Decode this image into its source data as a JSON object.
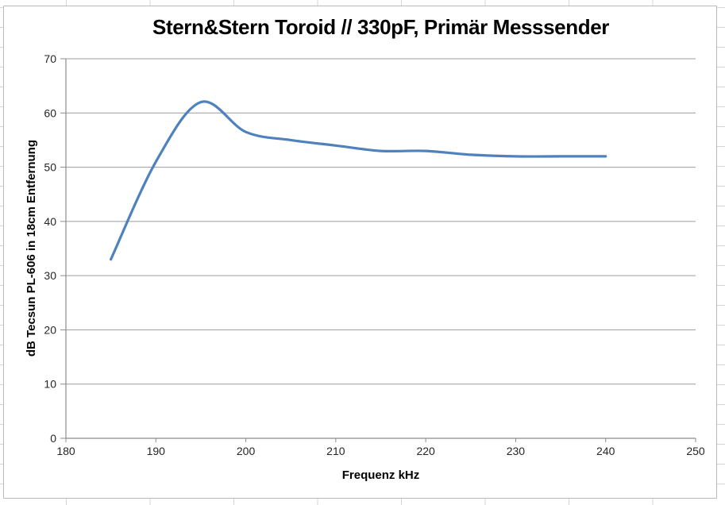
{
  "chart_data": {
    "type": "line",
    "title": "Stern&Stern Toroid // 330pF, Primär Messsender",
    "xlabel": "Frequenz kHz",
    "ylabel": "dB Tecsun PL-606 in 18cm Entfernung",
    "xlim": [
      180,
      250
    ],
    "ylim": [
      0,
      70
    ],
    "x_ticks": [
      180,
      190,
      200,
      210,
      220,
      230,
      240,
      250
    ],
    "y_ticks": [
      0,
      10,
      20,
      30,
      40,
      50,
      60,
      70
    ],
    "grid": "horizontal-major",
    "legend": "none",
    "line_smooth": true,
    "series": [
      {
        "color": "#4f81bd",
        "x": [
          185,
          190,
          195,
          200,
          205,
          210,
          215,
          220,
          225,
          230,
          235,
          240
        ],
        "y": [
          33,
          51,
          62,
          56.5,
          55,
          54,
          53,
          53,
          52.3,
          52,
          52,
          52
        ]
      }
    ]
  },
  "style": {
    "curve_color": "#4f81bd",
    "curve_width": 3.2,
    "grid_color": "#9c9c9c",
    "axis_color": "#8c8c8c",
    "tick_label_color": "#262626",
    "title_color": "#000000",
    "chart_border_color": "#b9b9b9",
    "sheet_grid_color": "#d5d5d5"
  }
}
